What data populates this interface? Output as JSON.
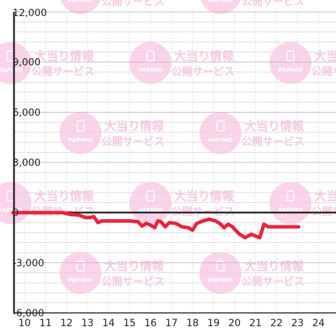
{
  "chart_data": {
    "type": "line",
    "title": "",
    "xlabel": "",
    "ylabel": "",
    "xlim": [
      9.5,
      24.5
    ],
    "ylim": [
      -6000,
      12000
    ],
    "x_ticks": [
      "10",
      "11",
      "12",
      "13",
      "14",
      "15",
      "16",
      "17",
      "18",
      "19",
      "20",
      "21",
      "22",
      "23",
      "24"
    ],
    "y_ticks": [
      {
        "value": 12000,
        "label": "12,000"
      },
      {
        "value": 9000,
        "label": "9,000"
      },
      {
        "value": 6000,
        "label": "6,000"
      },
      {
        "value": 3000,
        "label": "3,000"
      },
      {
        "value": 0,
        "label": "0"
      },
      {
        "value": -3000,
        "label": "-3,000"
      },
      {
        "value": -6000,
        "label": "-6,000"
      }
    ],
    "grid": true,
    "colors": {
      "line": "#e8243c",
      "grid_major": "#bbbbbb",
      "grid_minor": "#d8d8d8",
      "axis": "#222222"
    },
    "series": [
      {
        "values": [
          [
            9.45,
            0
          ],
          [
            10.0,
            0
          ],
          [
            10.5,
            0
          ],
          [
            11.0,
            0
          ],
          [
            11.5,
            0
          ],
          [
            11.8,
            0
          ],
          [
            12.2,
            -120
          ],
          [
            12.6,
            -150
          ],
          [
            12.9,
            -300
          ],
          [
            13.1,
            -300
          ],
          [
            13.3,
            -250
          ],
          [
            13.5,
            -600
          ],
          [
            13.7,
            -500
          ],
          [
            14.0,
            -500
          ],
          [
            14.5,
            -500
          ],
          [
            15.0,
            -500
          ],
          [
            15.4,
            -550
          ],
          [
            15.6,
            -800
          ],
          [
            15.8,
            -650
          ],
          [
            16.0,
            -750
          ],
          [
            16.2,
            -900
          ],
          [
            16.35,
            -500
          ],
          [
            16.5,
            -550
          ],
          [
            16.7,
            -850
          ],
          [
            16.9,
            -600
          ],
          [
            17.2,
            -650
          ],
          [
            17.5,
            -850
          ],
          [
            17.8,
            -900
          ],
          [
            18.0,
            -1050
          ],
          [
            18.2,
            -650
          ],
          [
            18.5,
            -500
          ],
          [
            18.8,
            -400
          ],
          [
            19.1,
            -500
          ],
          [
            19.3,
            -650
          ],
          [
            19.5,
            -900
          ],
          [
            19.7,
            -700
          ],
          [
            19.9,
            -850
          ],
          [
            20.2,
            -1250
          ],
          [
            20.5,
            -1500
          ],
          [
            20.8,
            -1300
          ],
          [
            21.0,
            -1400
          ],
          [
            21.2,
            -1500
          ],
          [
            21.4,
            -700
          ],
          [
            21.6,
            -850
          ],
          [
            22.0,
            -850
          ],
          [
            22.5,
            -850
          ],
          [
            23.05,
            -850
          ]
        ]
      }
    ]
  },
  "watermark": {
    "line1": "大当り情報",
    "line2": "公開サービス",
    "badge": "PAPIMO"
  }
}
